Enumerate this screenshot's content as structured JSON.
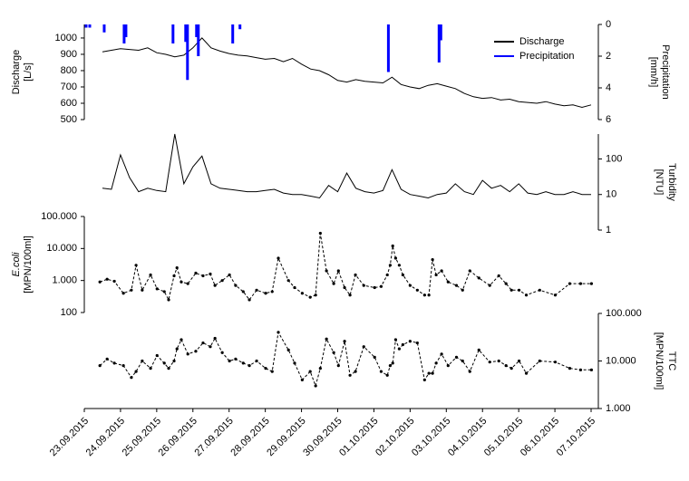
{
  "chart_data": [
    {
      "type": "line",
      "ylabel": [
        "Discharge",
        "[L/s]"
      ],
      "y2label": [
        "Precipitation",
        "[mm/h]"
      ],
      "xlim": [
        0,
        14.2
      ],
      "ylim": [
        500,
        1083
      ],
      "yticks": [
        500,
        600,
        700,
        800,
        900,
        1000
      ],
      "y2lim": [
        6,
        0
      ],
      "y2ticks": [
        0,
        2,
        4,
        6
      ],
      "legend": "upper right",
      "series": [
        {
          "name": "Discharge",
          "color": "#000000",
          "x": [
            0.5,
            0.75,
            1,
            1.25,
            1.5,
            1.75,
            2,
            2.25,
            2.5,
            2.75,
            3,
            3.25,
            3.5,
            3.75,
            4,
            4.25,
            4.5,
            4.75,
            5,
            5.25,
            5.5,
            5.75,
            6,
            6.25,
            6.5,
            6.75,
            7,
            7.25,
            7.5,
            7.75,
            8,
            8.25,
            8.5,
            8.75,
            9,
            9.25,
            9.5,
            9.75,
            10,
            10.25,
            10.5,
            10.75,
            11,
            11.25,
            11.5,
            11.75,
            12,
            12.25,
            12.5,
            12.75,
            13,
            13.25,
            13.5,
            13.75,
            14
          ],
          "values": [
            915,
            925,
            935,
            930,
            925,
            940,
            910,
            900,
            885,
            895,
            940,
            1000,
            940,
            920,
            905,
            895,
            890,
            880,
            870,
            875,
            855,
            875,
            840,
            810,
            800,
            775,
            740,
            730,
            745,
            735,
            730,
            725,
            760,
            715,
            700,
            690,
            710,
            720,
            705,
            690,
            660,
            640,
            630,
            635,
            620,
            625,
            610,
            605,
            600,
            610,
            595,
            585,
            590,
            575,
            590
          ]
        },
        {
          "name": "Precipitation",
          "color": "#0000ff",
          "type": "bar",
          "axis": "y2",
          "x": [
            0.05,
            0.15,
            0.55,
            1.1,
            1.15,
            2.45,
            2.8,
            2.85,
            3.1,
            3.15,
            4.1,
            4.3,
            8.4,
            9.8,
            9.85
          ],
          "values": [
            0.2,
            0.2,
            0.5,
            1.2,
            0.8,
            1.2,
            1.1,
            3.5,
            0.8,
            2.0,
            1.2,
            0.3,
            3.0,
            2.4,
            1.0
          ]
        }
      ]
    },
    {
      "type": "line",
      "y2label": [
        "Turbidity",
        "[NTU]"
      ],
      "xlim": [
        0,
        14.2
      ],
      "y2lim": [
        1,
        500
      ],
      "y2scale": "log",
      "y2ticks": [
        1,
        10,
        100
      ],
      "series": [
        {
          "color": "#000000",
          "axis": "y2",
          "x": [
            0.5,
            0.75,
            1,
            1.25,
            1.5,
            1.75,
            2,
            2.25,
            2.5,
            2.75,
            3,
            3.25,
            3.5,
            3.75,
            4,
            4.25,
            4.5,
            4.75,
            5,
            5.25,
            5.5,
            5.75,
            6,
            6.25,
            6.5,
            6.75,
            7,
            7.25,
            7.5,
            7.75,
            8,
            8.25,
            8.5,
            8.75,
            9,
            9.25,
            9.5,
            9.75,
            10,
            10.25,
            10.5,
            10.75,
            11,
            11.25,
            11.5,
            11.75,
            12,
            12.25,
            12.5,
            12.75,
            13,
            13.25,
            13.5,
            13.75,
            14
          ],
          "values": [
            15,
            14,
            130,
            30,
            12,
            15,
            13,
            12,
            500,
            20,
            60,
            120,
            20,
            15,
            14,
            13,
            12,
            12,
            13,
            14,
            11,
            10,
            10,
            9,
            8,
            18,
            12,
            40,
            15,
            12,
            11,
            13,
            50,
            14,
            10,
            9,
            8,
            10,
            11,
            20,
            12,
            10,
            25,
            15,
            18,
            12,
            20,
            11,
            10,
            12,
            10,
            10,
            12,
            10,
            10
          ]
        }
      ]
    },
    {
      "type": "line",
      "ylabel": [
        "E.coli",
        "[MPN/100ml]"
      ],
      "xlim": [
        0,
        14.2
      ],
      "ylim": [
        100,
        100000
      ],
      "yscale": "log",
      "yticks": [
        100,
        {
          "value": 1000,
          "label": "1.000"
        },
        {
          "value": 10000,
          "label": "10.000"
        },
        {
          "value": 100000,
          "label": "100.000"
        }
      ],
      "series": [
        {
          "color": "#000000",
          "linestyle": "dashed",
          "marker": "circle",
          "x": [
            0.43,
            0.63,
            0.83,
            1.08,
            1.3,
            1.43,
            1.6,
            1.83,
            2.01,
            2.21,
            2.33,
            2.48,
            2.56,
            2.68,
            2.86,
            3.08,
            3.28,
            3.48,
            3.61,
            3.81,
            4.01,
            4.18,
            4.39,
            4.56,
            4.76,
            5.01,
            5.19,
            5.36,
            5.64,
            5.81,
            6.02,
            6.24,
            6.39,
            6.52,
            6.69,
            6.89,
            7.02,
            7.19,
            7.34,
            7.49,
            7.72,
            8.02,
            8.2,
            8.37,
            8.45,
            8.52,
            8.6,
            8.7,
            8.8,
            9.0,
            9.2,
            9.4,
            9.52,
            9.62,
            9.72,
            9.87,
            10.05,
            10.28,
            10.45,
            10.65,
            10.9,
            11.2,
            11.45,
            11.65,
            11.8,
            12.01,
            12.21,
            12.58,
            13.01,
            13.41,
            13.71,
            14.01
          ],
          "values": [
            900,
            1100,
            950,
            400,
            500,
            3000,
            500,
            1500,
            550,
            450,
            250,
            1400,
            2500,
            900,
            800,
            1700,
            1400,
            1600,
            700,
            1000,
            1500,
            700,
            450,
            250,
            500,
            400,
            450,
            5000,
            1000,
            600,
            400,
            300,
            350,
            30000,
            2000,
            800,
            2000,
            600,
            350,
            1500,
            700,
            600,
            650,
            1500,
            3000,
            12000,
            5000,
            3000,
            1500,
            700,
            500,
            350,
            350,
            4500,
            1500,
            2000,
            900,
            700,
            500,
            2000,
            1200,
            700,
            1400,
            800,
            500,
            500,
            350,
            500,
            350,
            800,
            800,
            800
          ]
        }
      ]
    },
    {
      "type": "line",
      "y2label": [
        "TTC",
        "[MPN/100ml]"
      ],
      "xlim": [
        0,
        14.2
      ],
      "xticks": [
        {
          "value": 0,
          "label": "23.09.2015"
        },
        {
          "value": 1,
          "label": "24.09.2015"
        },
        {
          "value": 2,
          "label": "25.09.2015"
        },
        {
          "value": 3,
          "label": "26.09.2015"
        },
        {
          "value": 4,
          "label": "27.09.2015"
        },
        {
          "value": 5,
          "label": "28.09.2015"
        },
        {
          "value": 6,
          "label": "29.09.2015"
        },
        {
          "value": 7,
          "label": "30.09.2015"
        },
        {
          "value": 8,
          "label": "01.10.2015"
        },
        {
          "value": 9,
          "label": "02.10.2015"
        },
        {
          "value": 10,
          "label": "03.10.2015"
        },
        {
          "value": 11,
          "label": "04.10.2015"
        },
        {
          "value": 12,
          "label": "05.10.2015"
        },
        {
          "value": 13,
          "label": "06.10.2015"
        },
        {
          "value": 14,
          "label": "07.10.2015"
        }
      ],
      "y2lim": [
        1000,
        100000
      ],
      "y2scale": "log",
      "y2ticks": [
        {
          "value": 1000,
          "label": "1.000"
        },
        {
          "value": 10000,
          "label": "10.000"
        },
        {
          "value": 100000,
          "label": "100.000"
        }
      ],
      "series": [
        {
          "color": "#000000",
          "axis": "y2",
          "linestyle": "dashed",
          "marker": "circle",
          "x": [
            0.43,
            0.63,
            0.83,
            1.08,
            1.3,
            1.43,
            1.6,
            1.83,
            2.01,
            2.21,
            2.33,
            2.48,
            2.56,
            2.68,
            2.86,
            3.08,
            3.28,
            3.48,
            3.61,
            3.81,
            4.01,
            4.18,
            4.39,
            4.56,
            4.76,
            5.01,
            5.19,
            5.36,
            5.64,
            5.81,
            6.02,
            6.24,
            6.39,
            6.52,
            6.69,
            6.89,
            7.02,
            7.19,
            7.34,
            7.49,
            7.72,
            8.02,
            8.2,
            8.37,
            8.45,
            8.52,
            8.6,
            8.7,
            8.8,
            9.0,
            9.2,
            9.4,
            9.52,
            9.62,
            9.72,
            9.87,
            10.05,
            10.28,
            10.45,
            10.65,
            10.9,
            11.2,
            11.45,
            11.65,
            11.8,
            12.01,
            12.21,
            12.58,
            13.01,
            13.41,
            13.71,
            14.01
          ],
          "values": [
            8000,
            11000,
            9000,
            8000,
            4500,
            6000,
            10000,
            7000,
            13000,
            9000,
            7000,
            10000,
            18000,
            28000,
            14000,
            16000,
            24000,
            20000,
            30000,
            15000,
            10000,
            11000,
            9000,
            8000,
            10000,
            7000,
            6000,
            40000,
            17000,
            9000,
            4000,
            6000,
            3000,
            7000,
            29000,
            15000,
            8000,
            26000,
            5000,
            6000,
            20000,
            12000,
            6000,
            5000,
            8000,
            9000,
            28000,
            18000,
            22000,
            26000,
            24000,
            4000,
            5500,
            5500,
            9000,
            14000,
            8000,
            12000,
            10000,
            6000,
            17000,
            9500,
            10000,
            8000,
            7000,
            10000,
            5500,
            10000,
            9500,
            7000,
            6500,
            6500
          ]
        }
      ]
    }
  ]
}
